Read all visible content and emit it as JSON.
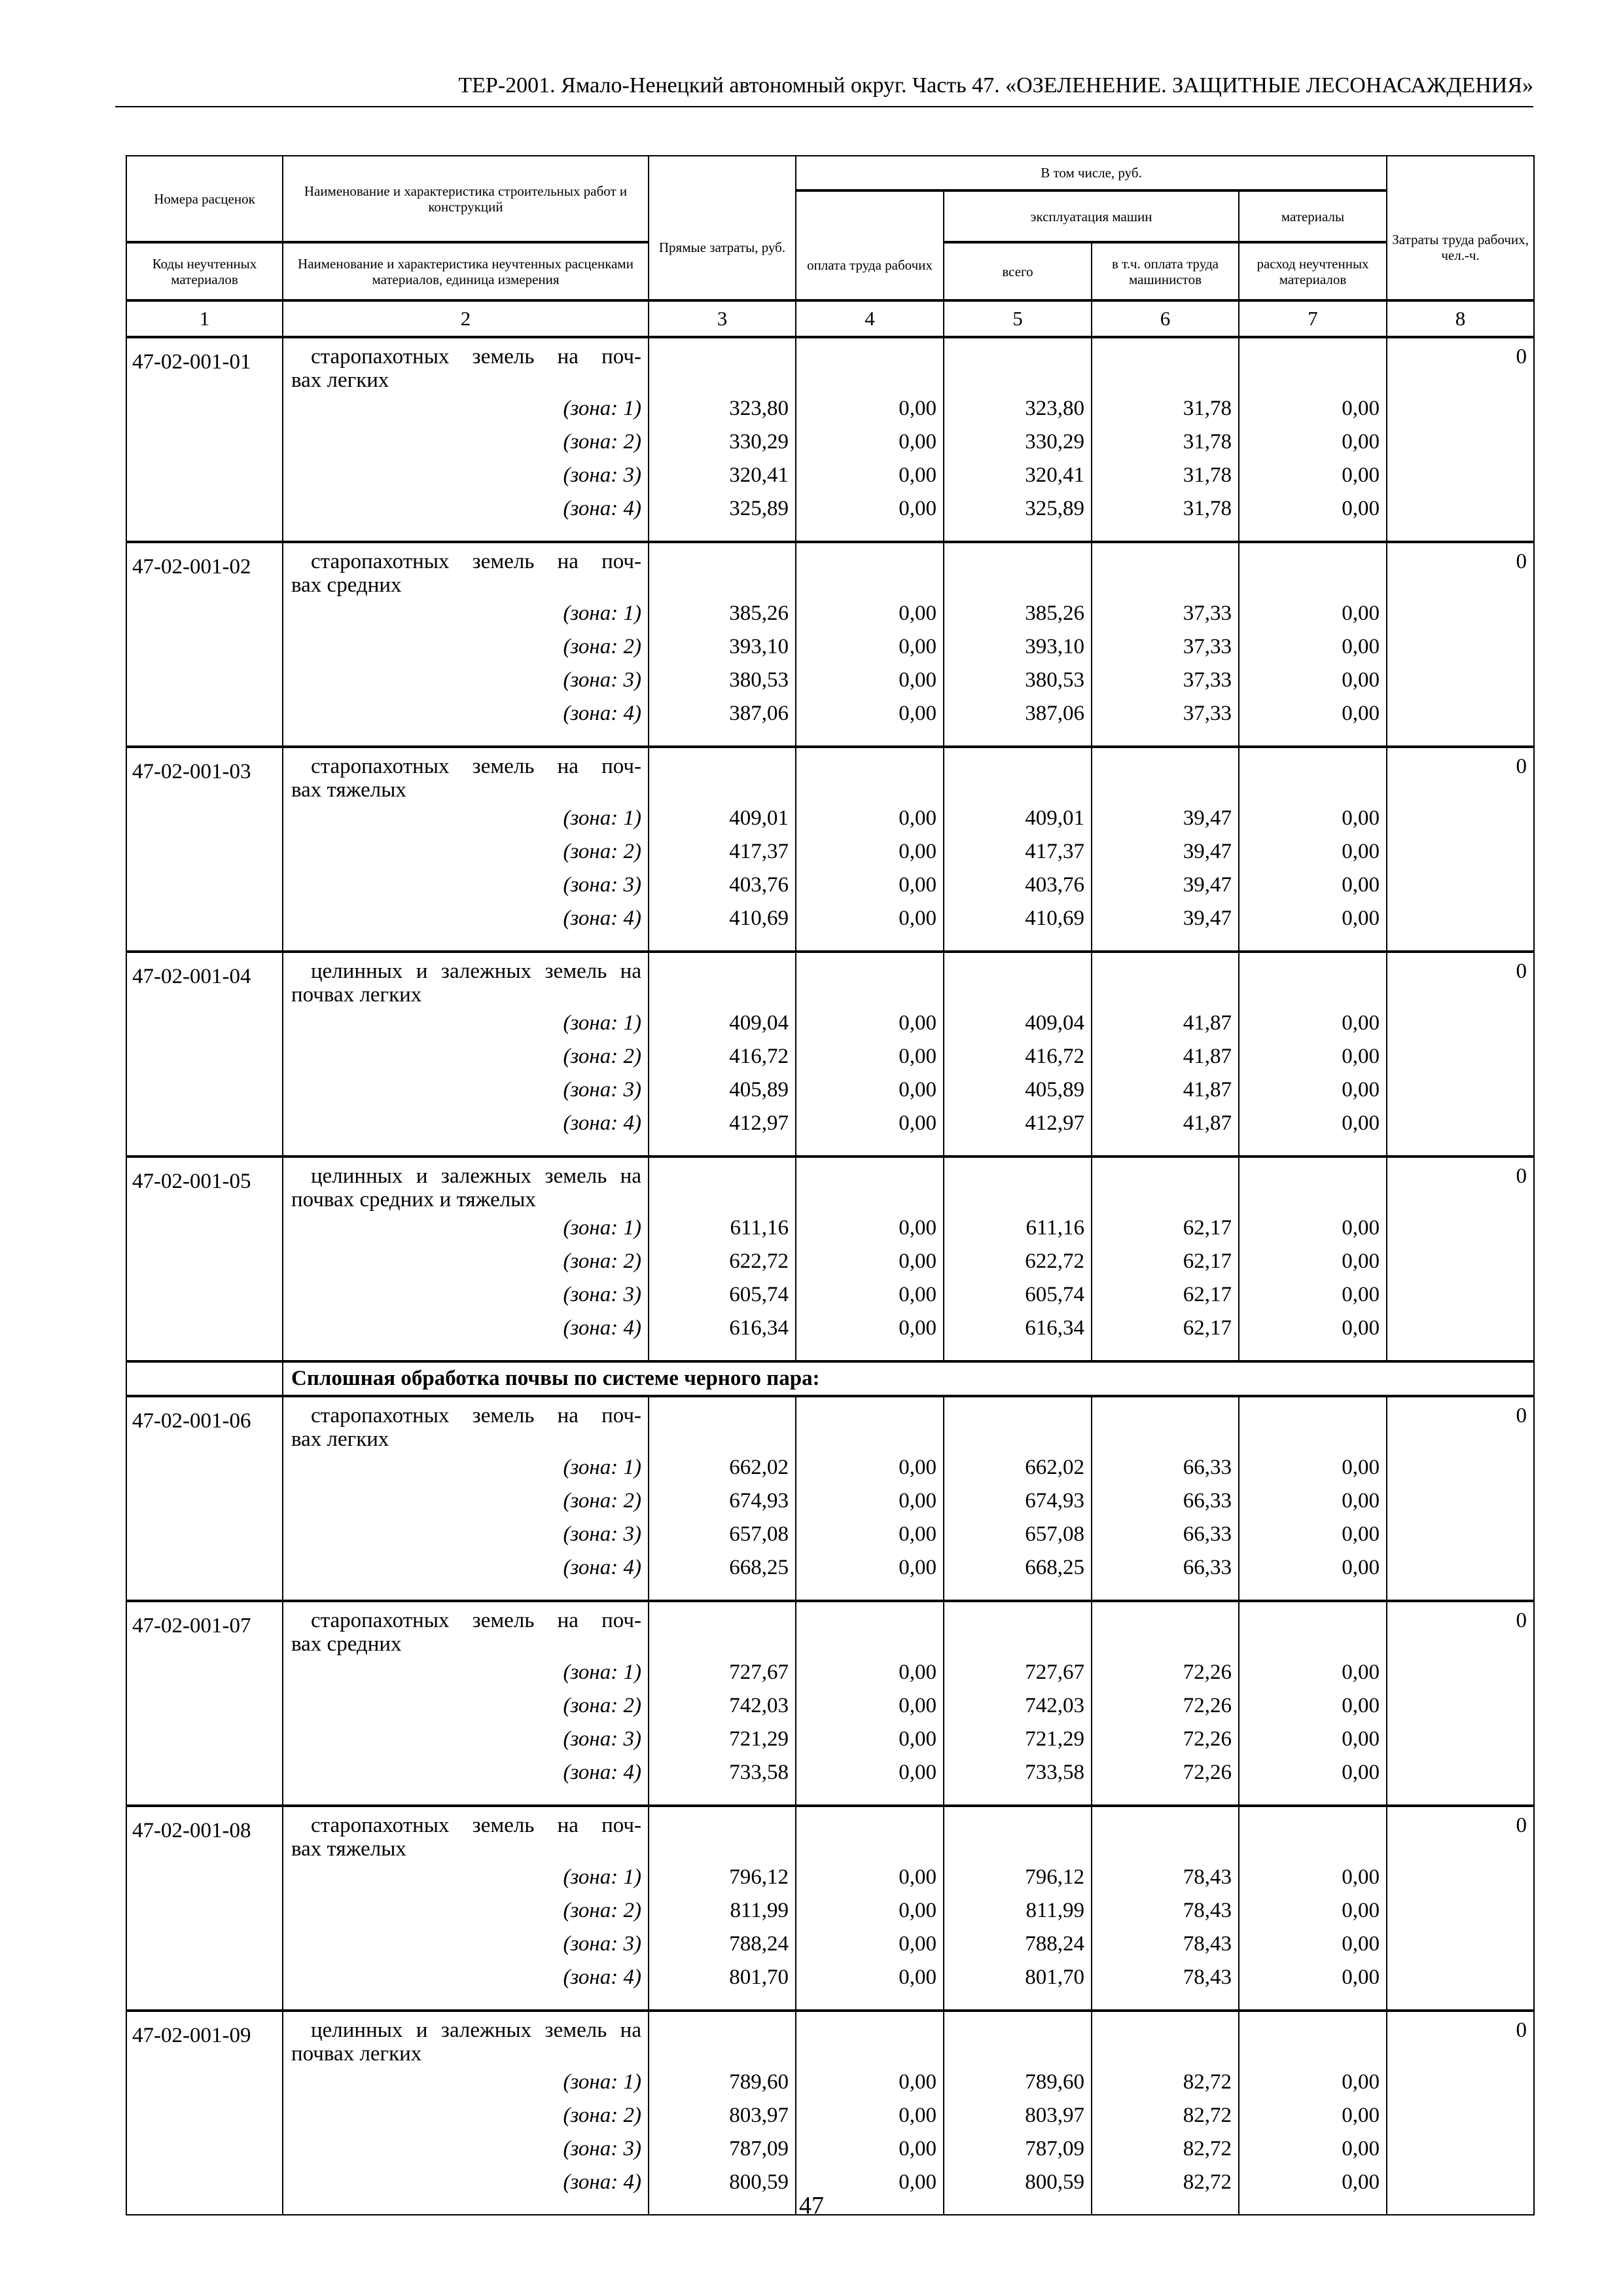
{
  "running_head": "ТЕР-2001. Ямало-Ненецкий автономный округ. Часть 47. «ОЗЕЛЕНЕНИЕ. ЗАЩИТНЫЕ ЛЕСОНАСАЖДЕНИЯ»",
  "header": {
    "col1_top": "Номера расценок",
    "col1_bottom": "Коды неучтенных материалов",
    "col2_top": "Наименование и характеристика строительных работ и конструкций",
    "col2_bottom": "Наименование и характеристика неучтенных расценками материалов, единица измерения",
    "col3": "Прямые затраты, руб.",
    "group": "В том числе, руб.",
    "col4": "оплата труда рабочих",
    "machines": "эксплуатация машин",
    "col5": "всего",
    "col6": "в т.ч. оплата труда машинистов",
    "materials": "материалы",
    "col7": "расход неучтенных материалов",
    "col8": "Затраты труда рабочих, чел.-ч.",
    "numbers": [
      "1",
      "2",
      "3",
      "4",
      "5",
      "6",
      "7",
      "8"
    ]
  },
  "section_title": "Сплошная обработка почвы по системе черного пара:",
  "zone_labels": [
    "(зона: 1)",
    "(зона: 2)",
    "(зона: 3)",
    "(зона: 4)"
  ],
  "records": [
    {
      "code": "47-02-001-01",
      "name": [
        "старопахотных земель на поч-",
        "вах легких"
      ],
      "labor": "0",
      "zones": [
        [
          "323,80",
          "0,00",
          "323,80",
          "31,78",
          "0,00"
        ],
        [
          "330,29",
          "0,00",
          "330,29",
          "31,78",
          "0,00"
        ],
        [
          "320,41",
          "0,00",
          "320,41",
          "31,78",
          "0,00"
        ],
        [
          "325,89",
          "0,00",
          "325,89",
          "31,78",
          "0,00"
        ]
      ]
    },
    {
      "code": "47-02-001-02",
      "name": [
        "старопахотных земель на поч-",
        "вах средних"
      ],
      "labor": "0",
      "zones": [
        [
          "385,26",
          "0,00",
          "385,26",
          "37,33",
          "0,00"
        ],
        [
          "393,10",
          "0,00",
          "393,10",
          "37,33",
          "0,00"
        ],
        [
          "380,53",
          "0,00",
          "380,53",
          "37,33",
          "0,00"
        ],
        [
          "387,06",
          "0,00",
          "387,06",
          "37,33",
          "0,00"
        ]
      ]
    },
    {
      "code": "47-02-001-03",
      "name": [
        "старопахотных земель на поч-",
        "вах тяжелых"
      ],
      "labor": "0",
      "zones": [
        [
          "409,01",
          "0,00",
          "409,01",
          "39,47",
          "0,00"
        ],
        [
          "417,37",
          "0,00",
          "417,37",
          "39,47",
          "0,00"
        ],
        [
          "403,76",
          "0,00",
          "403,76",
          "39,47",
          "0,00"
        ],
        [
          "410,69",
          "0,00",
          "410,69",
          "39,47",
          "0,00"
        ]
      ]
    },
    {
      "code": "47-02-001-04",
      "name": [
        "целинных и залежных земель на",
        "почвах легких"
      ],
      "labor": "0",
      "zones": [
        [
          "409,04",
          "0,00",
          "409,04",
          "41,87",
          "0,00"
        ],
        [
          "416,72",
          "0,00",
          "416,72",
          "41,87",
          "0,00"
        ],
        [
          "405,89",
          "0,00",
          "405,89",
          "41,87",
          "0,00"
        ],
        [
          "412,97",
          "0,00",
          "412,97",
          "41,87",
          "0,00"
        ]
      ]
    },
    {
      "code": "47-02-001-05",
      "name": [
        "целинных и залежных земель на",
        "почвах средних и тяжелых"
      ],
      "labor": "0",
      "zones": [
        [
          "611,16",
          "0,00",
          "611,16",
          "62,17",
          "0,00"
        ],
        [
          "622,72",
          "0,00",
          "622,72",
          "62,17",
          "0,00"
        ],
        [
          "605,74",
          "0,00",
          "605,74",
          "62,17",
          "0,00"
        ],
        [
          "616,34",
          "0,00",
          "616,34",
          "62,17",
          "0,00"
        ]
      ]
    },
    {
      "code": "47-02-001-06",
      "name": [
        "старопахотных земель на поч-",
        "вах легких"
      ],
      "labor": "0",
      "zones": [
        [
          "662,02",
          "0,00",
          "662,02",
          "66,33",
          "0,00"
        ],
        [
          "674,93",
          "0,00",
          "674,93",
          "66,33",
          "0,00"
        ],
        [
          "657,08",
          "0,00",
          "657,08",
          "66,33",
          "0,00"
        ],
        [
          "668,25",
          "0,00",
          "668,25",
          "66,33",
          "0,00"
        ]
      ]
    },
    {
      "code": "47-02-001-07",
      "name": [
        "старопахотных земель на поч-",
        "вах средних"
      ],
      "labor": "0",
      "zones": [
        [
          "727,67",
          "0,00",
          "727,67",
          "72,26",
          "0,00"
        ],
        [
          "742,03",
          "0,00",
          "742,03",
          "72,26",
          "0,00"
        ],
        [
          "721,29",
          "0,00",
          "721,29",
          "72,26",
          "0,00"
        ],
        [
          "733,58",
          "0,00",
          "733,58",
          "72,26",
          "0,00"
        ]
      ]
    },
    {
      "code": "47-02-001-08",
      "name": [
        "старопахотных земель на поч-",
        "вах тяжелых"
      ],
      "labor": "0",
      "zones": [
        [
          "796,12",
          "0,00",
          "796,12",
          "78,43",
          "0,00"
        ],
        [
          "811,99",
          "0,00",
          "811,99",
          "78,43",
          "0,00"
        ],
        [
          "788,24",
          "0,00",
          "788,24",
          "78,43",
          "0,00"
        ],
        [
          "801,70",
          "0,00",
          "801,70",
          "78,43",
          "0,00"
        ]
      ]
    },
    {
      "code": "47-02-001-09",
      "name": [
        "целинных и залежных земель на",
        "почвах легких"
      ],
      "labor": "0",
      "zones": [
        [
          "789,60",
          "0,00",
          "789,60",
          "82,72",
          "0,00"
        ],
        [
          "803,97",
          "0,00",
          "803,97",
          "82,72",
          "0,00"
        ],
        [
          "787,09",
          "0,00",
          "787,09",
          "82,72",
          "0,00"
        ],
        [
          "800,59",
          "0,00",
          "800,59",
          "82,72",
          "0,00"
        ]
      ]
    }
  ],
  "page_number": "47"
}
